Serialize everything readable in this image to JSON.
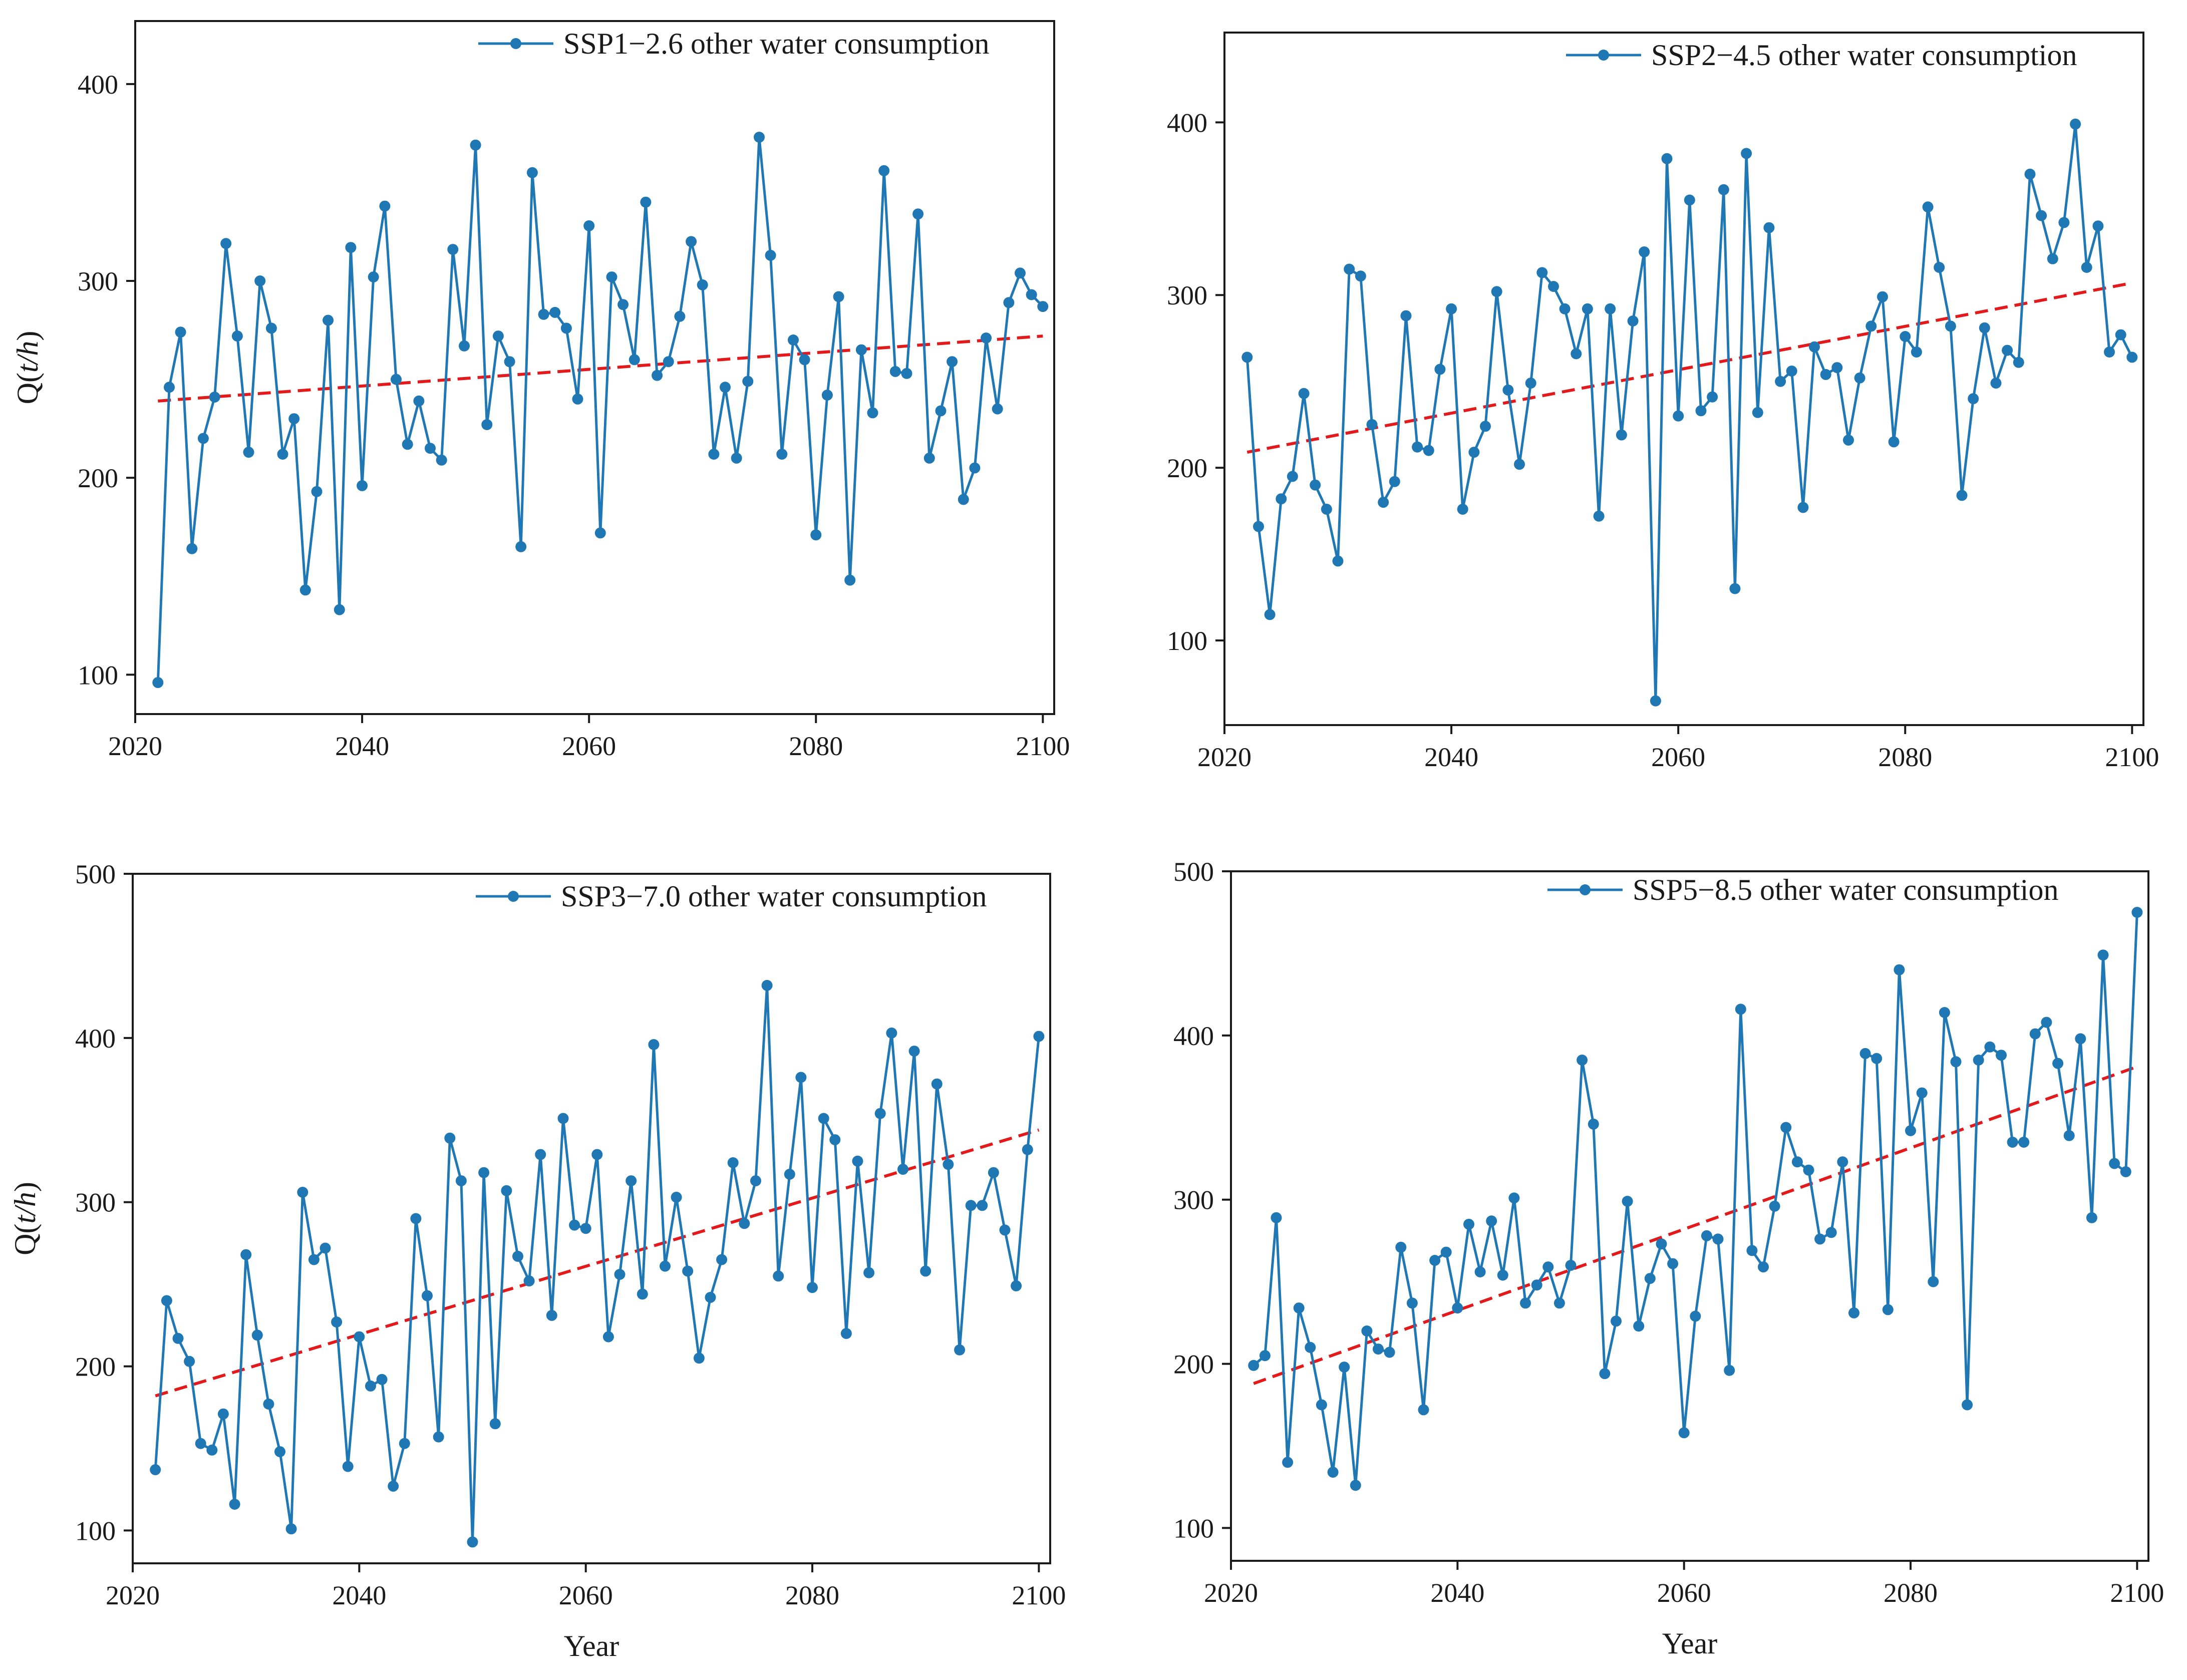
{
  "colors": {
    "series": "#1f77b4",
    "trend": "#e31a1c",
    "axis": "#1a1a1a"
  },
  "chart_data": [
    {
      "type": "line",
      "panel": "top-left",
      "title": "",
      "legend": "SSP1−2.6 other water consumption",
      "legend_position": "top-right",
      "xlabel": "",
      "ylabel": "Q(t/h)",
      "ylabel_prefix": "Q(",
      "ylabel_var": "t/h",
      "ylabel_suffix": ")",
      "xlim": [
        2020,
        2101
      ],
      "ylim": [
        80,
        432
      ],
      "xticks": [
        2020,
        2040,
        2060,
        2080,
        2100
      ],
      "yticks": [
        100,
        200,
        300,
        400
      ],
      "grid": false,
      "x_start": 2022,
      "values": [
        96,
        246,
        274,
        164,
        220,
        241,
        319,
        272,
        213,
        300,
        276,
        212,
        230,
        143,
        193,
        280,
        133,
        317,
        196,
        302,
        338,
        250,
        217,
        239,
        215,
        209,
        316,
        267,
        369,
        227,
        272,
        259,
        165,
        355,
        283,
        284,
        276,
        240,
        328,
        172,
        302,
        288,
        260,
        340,
        252,
        259,
        282,
        320,
        298,
        212,
        246,
        210,
        249,
        373,
        313,
        212,
        270,
        260,
        171,
        242,
        292,
        148,
        265,
        233,
        356,
        254,
        253,
        334,
        210,
        234,
        259,
        189,
        205,
        271,
        235,
        289,
        304,
        293,
        287
      ],
      "trend": {
        "x": [
          2022,
          2100
        ],
        "y": [
          239,
          272
        ]
      }
    },
    {
      "type": "line",
      "panel": "top-right",
      "title": "",
      "legend": "SSP2−4.5 other water consumption",
      "legend_position": "top-right",
      "xlabel": "",
      "ylabel": "",
      "xlim": [
        2020,
        2101
      ],
      "ylim": [
        51,
        452
      ],
      "xticks": [
        2020,
        2040,
        2060,
        2080,
        2100
      ],
      "yticks": [
        100,
        200,
        300,
        400
      ],
      "grid": false,
      "x_start": 2022,
      "values": [
        264,
        166,
        115,
        182,
        195,
        243,
        190,
        176,
        146,
        315,
        311,
        225,
        180,
        192,
        288,
        212,
        210,
        257,
        292,
        176,
        209,
        224,
        302,
        245,
        202,
        249,
        313,
        305,
        292,
        266,
        292,
        172,
        292,
        219,
        285,
        325,
        65,
        379,
        230,
        355,
        233,
        241,
        361,
        130,
        382,
        232,
        339,
        250,
        256,
        177,
        270,
        254,
        258,
        216,
        252,
        282,
        299,
        215,
        276,
        267,
        351,
        316,
        282,
        184,
        240,
        281,
        249,
        268,
        261,
        370,
        346,
        321,
        342,
        399,
        316,
        340,
        267,
        277,
        264
      ],
      "trend": {
        "x": [
          2022,
          2100
        ],
        "y": [
          209,
          307
        ]
      }
    },
    {
      "type": "line",
      "panel": "bottom-left",
      "title": "",
      "legend": "SSP3−7.0 other water consumption",
      "legend_position": "top-right",
      "xlabel": "Year",
      "ylabel": "Q(t/h)",
      "ylabel_prefix": "Q(",
      "ylabel_var": "t/h",
      "ylabel_suffix": ")",
      "xlim": [
        2020,
        2101
      ],
      "ylim": [
        80,
        500
      ],
      "xticks": [
        2020,
        2040,
        2060,
        2080,
        2100
      ],
      "yticks": [
        100,
        200,
        300,
        400,
        500
      ],
      "grid": false,
      "x_start": 2022,
      "values": [
        137,
        240,
        217,
        203,
        153,
        149,
        171,
        116,
        268,
        219,
        177,
        148,
        101,
        306,
        265,
        272,
        227,
        139,
        218,
        188,
        192,
        127,
        153,
        290,
        243,
        157,
        339,
        313,
        93,
        318,
        165,
        307,
        267,
        252,
        329,
        231,
        351,
        286,
        284,
        329,
        218,
        256,
        313,
        244,
        396,
        261,
        303,
        258,
        205,
        242,
        265,
        324,
        287,
        313,
        432,
        255,
        317,
        376,
        248,
        351,
        338,
        220,
        325,
        257,
        354,
        403,
        320,
        392,
        258,
        372,
        323,
        210,
        298,
        298,
        318,
        283,
        249,
        332,
        401
      ],
      "trend": {
        "x": [
          2022,
          2100
        ],
        "y": [
          182,
          344
        ]
      }
    },
    {
      "type": "line",
      "panel": "bottom-right",
      "title": "",
      "legend": "SSP5−8.5 other water consumption",
      "legend_position": "top-right",
      "xlabel": "Year",
      "ylabel": "",
      "xlim": [
        2020,
        2101
      ],
      "ylim": [
        80,
        500
      ],
      "xticks": [
        2020,
        2040,
        2060,
        2080,
        2100
      ],
      "yticks": [
        100,
        200,
        300,
        400,
        500
      ],
      "grid": false,
      "x_start": 2022,
      "values": [
        199,
        205,
        289,
        140,
        234,
        210,
        175,
        134,
        198,
        126,
        220,
        209,
        207,
        271,
        237,
        172,
        263,
        268,
        234,
        285,
        256,
        287,
        254,
        301,
        237,
        248,
        259,
        237,
        260,
        385,
        346,
        194,
        226,
        299,
        223,
        252,
        273,
        261,
        158,
        229,
        278,
        276,
        196,
        416,
        269,
        259,
        296,
        344,
        323,
        318,
        276,
        280,
        323,
        231,
        389,
        386,
        233,
        440,
        342,
        365,
        250,
        414,
        384,
        175,
        385,
        393,
        388,
        335,
        335,
        401,
        408,
        383,
        339,
        398,
        289,
        449,
        322,
        317,
        475
      ],
      "trend": {
        "x": [
          2022,
          2100
        ],
        "y": [
          188,
          381
        ]
      }
    }
  ]
}
